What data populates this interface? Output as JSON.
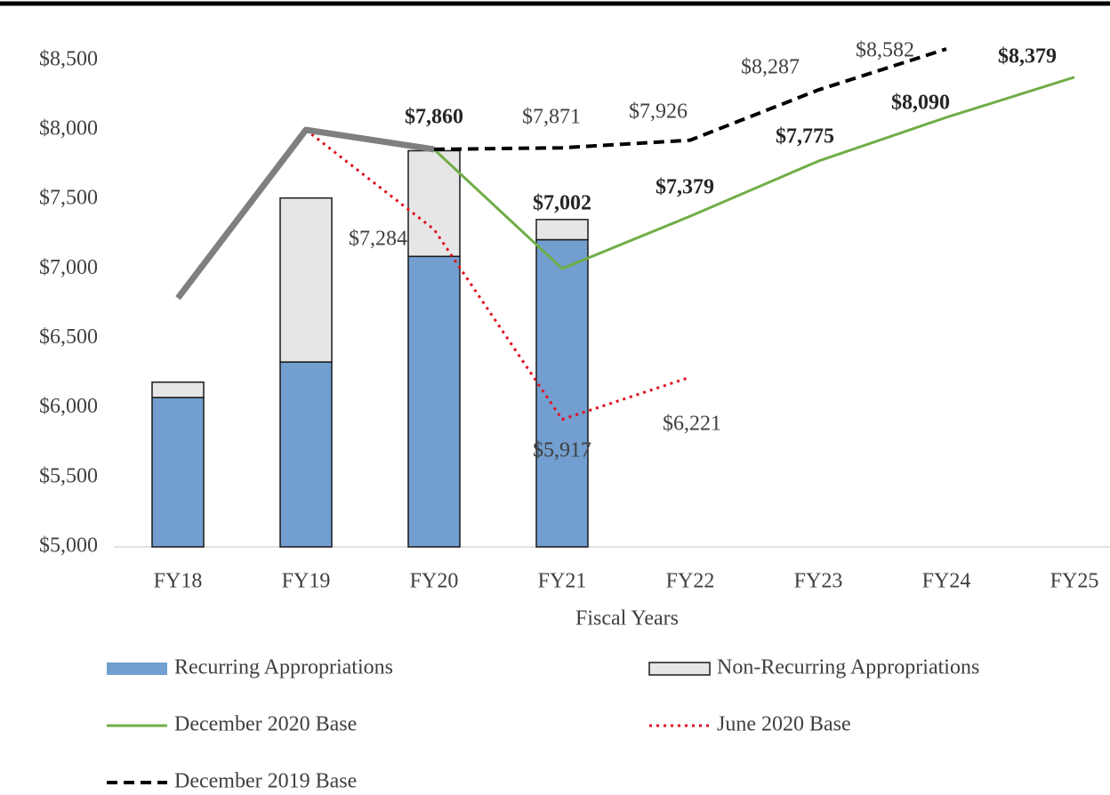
{
  "chart_data": {
    "type": "bar",
    "x_label": "Fiscal Years",
    "categories": [
      "FY18",
      "FY19",
      "FY20",
      "FY21",
      "FY22",
      "FY23",
      "FY24",
      "FY25"
    ],
    "ylim": [
      5000,
      8800
    ],
    "yticks": [
      {
        "value": 5000,
        "label": "$5,000"
      },
      {
        "value": 5500,
        "label": "$5,500"
      },
      {
        "value": 6000,
        "label": "$6,000"
      },
      {
        "value": 6500,
        "label": "$6,500"
      },
      {
        "value": 7000,
        "label": "$7,000"
      },
      {
        "value": 7500,
        "label": "$7,500"
      },
      {
        "value": 8000,
        "label": "$8,000"
      },
      {
        "value": 8500,
        "label": "$8,500"
      }
    ],
    "grid": false,
    "series": [
      {
        "name": "Recurring Appropriations",
        "type": "bar",
        "color": "#729fcf",
        "values": [
          6075,
          6330,
          7090,
          7210,
          null,
          null,
          null,
          null
        ]
      },
      {
        "name": "Non-Recurring Appropriations",
        "type": "bar",
        "stacked": true,
        "color": "#e6e6e6",
        "values": [
          110,
          1180,
          760,
          145,
          null,
          null,
          null,
          null
        ]
      },
      {
        "name": "December 2020 Base",
        "type": "line",
        "color": "#70ad47",
        "line_style": "solid",
        "line_width": 3,
        "label_weight": "bold",
        "values": [
          null,
          null,
          7860,
          7002,
          7379,
          7775,
          8090,
          8379
        ],
        "value_labels": [
          null,
          null,
          "$7,860",
          "$7,002",
          "$7,379",
          "$7,775",
          "$8,090",
          "$8,379"
        ]
      },
      {
        "name": "June 2020 Base",
        "type": "line",
        "color": "#e0101e",
        "line_style": "dotted",
        "line_width": 3,
        "values": [
          null,
          8000,
          7284,
          5917,
          6221,
          null,
          null,
          null
        ],
        "value_labels": [
          null,
          null,
          "$7,284",
          "$5,917",
          "$6,221",
          null,
          null,
          null
        ]
      },
      {
        "name": "December 2019 Base",
        "type": "line",
        "color": "#000000",
        "line_style": "dashed",
        "line_width": 4,
        "values": [
          null,
          null,
          7860,
          7871,
          7926,
          8287,
          8582,
          null
        ],
        "value_labels": [
          null,
          null,
          null,
          "$7,871",
          "$7,926",
          "$8,287",
          "$8,582",
          null
        ]
      },
      {
        "type": "line",
        "color": "#7f7f7f",
        "line_style": "solid",
        "line_width": 7,
        "values": [
          6790,
          8000,
          7860,
          null,
          null,
          null,
          null,
          null
        ]
      }
    ]
  }
}
